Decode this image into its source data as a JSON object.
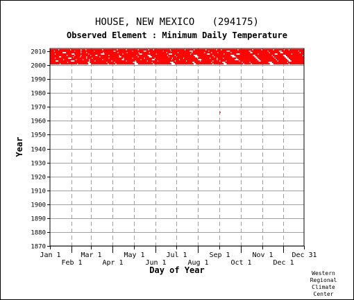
{
  "header": {
    "station": "HOUSE, NEW MEXICO   (294175)",
    "element": "Observed Element : Minimum Daily Temperature"
  },
  "credit": [
    "Western",
    "Regional",
    "Climate",
    "Center"
  ],
  "chart_data": {
    "type": "scatter",
    "xlabel": "Day of Year",
    "ylabel": "Year",
    "xlim": [
      1,
      365
    ],
    "ylim": [
      1870,
      2012
    ],
    "x_ticks_upper": [
      {
        "label": "Jan 1",
        "day": 1
      },
      {
        "label": "Mar 1",
        "day": 60
      },
      {
        "label": "May 1",
        "day": 121
      },
      {
        "label": "Jul 1",
        "day": 182
      },
      {
        "label": "Sep 1",
        "day": 244
      },
      {
        "label": "Nov 1",
        "day": 305
      },
      {
        "label": "Dec 31",
        "day": 365
      }
    ],
    "x_ticks_lower": [
      {
        "label": "Feb 1",
        "day": 32
      },
      {
        "label": "Apr 1",
        "day": 91
      },
      {
        "label": "Jun 1",
        "day": 152
      },
      {
        "label": "Aug 1",
        "day": 213
      },
      {
        "label": "Oct 1",
        "day": 274
      },
      {
        "label": "Dec 1",
        "day": 335
      }
    ],
    "y_ticks": [
      2010,
      2000,
      1990,
      1980,
      1970,
      1960,
      1950,
      1940,
      1930,
      1920,
      1910,
      1900,
      1890,
      1880,
      1870
    ],
    "grid": true,
    "series": [
      {
        "color": "#ff0000",
        "year_range": [
          2001,
          2011
        ],
        "outliers": [
          {
            "year": 1966,
            "day": 244
          }
        ]
      }
    ]
  }
}
